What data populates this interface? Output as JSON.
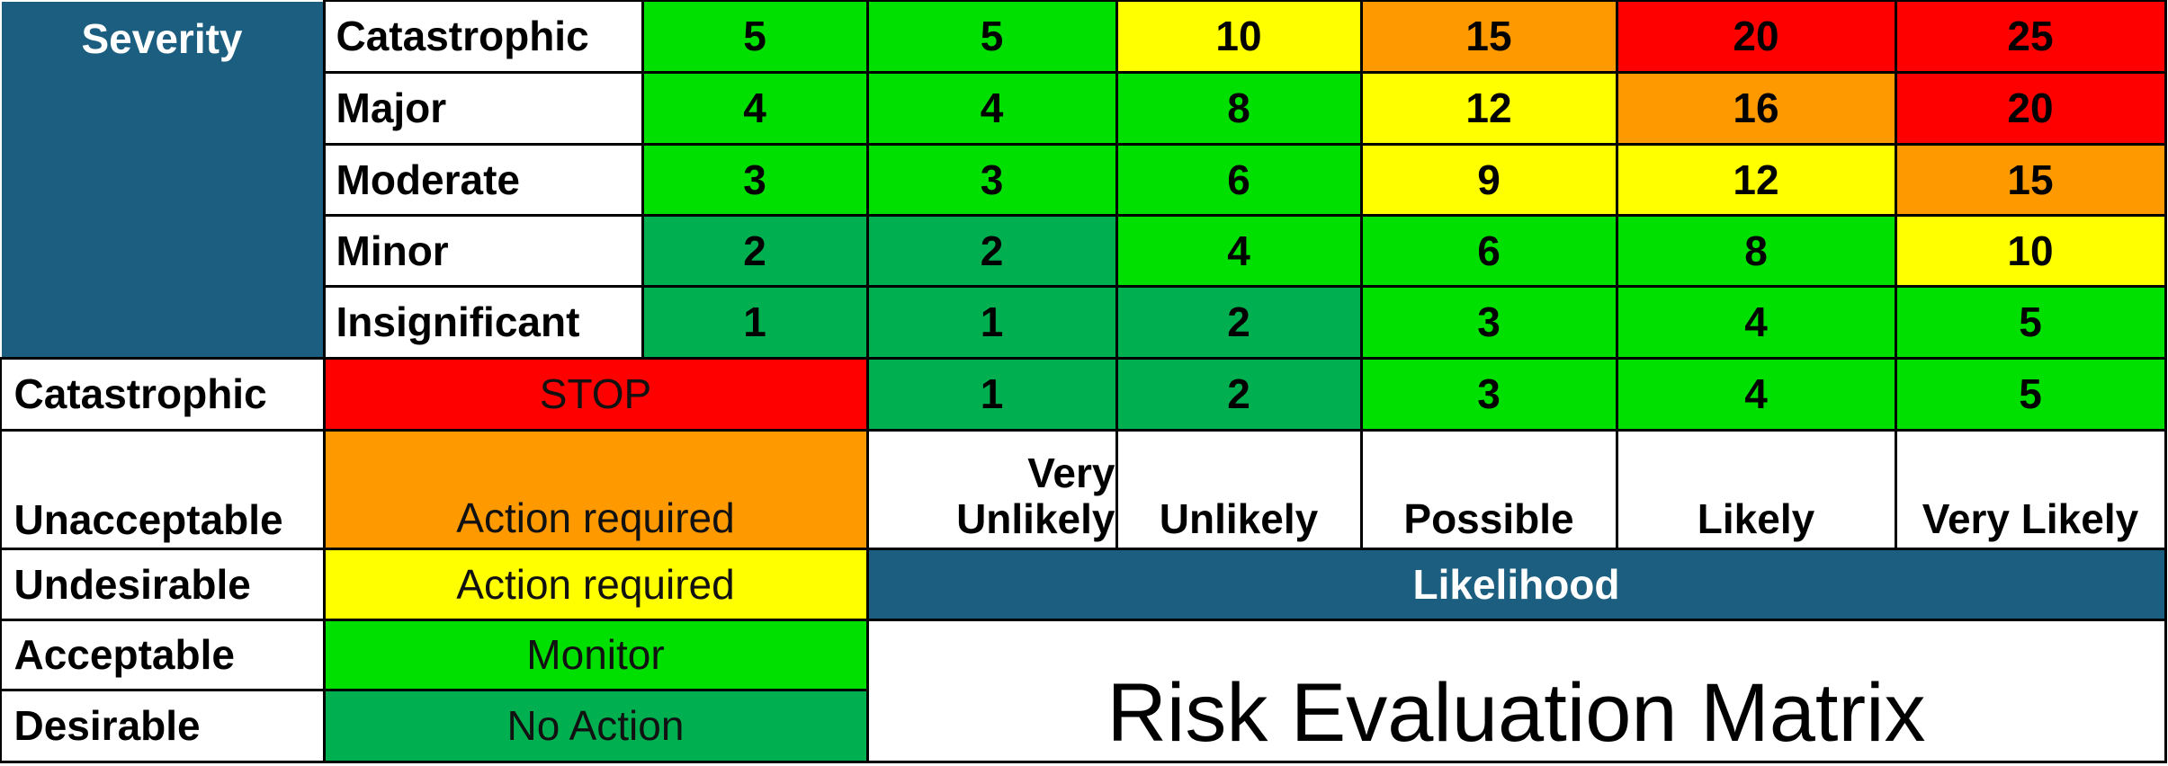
{
  "severity_header": "Severity",
  "likelihood_header": "Likelihood",
  "title": "Risk Evaluation Matrix",
  "colors": {
    "red": "#ff0000",
    "orange": "#ff9900",
    "yellow": "#ffff00",
    "light_green": "#00e000",
    "dark_green": "#00b050",
    "navy": "#1b5e80"
  },
  "severity_rows": [
    {
      "label": "Catastrophic",
      "values": [
        "5",
        "5",
        "10",
        "15",
        "20",
        "25"
      ]
    },
    {
      "label": "Major",
      "values": [
        "4",
        "4",
        "8",
        "12",
        "16",
        "20"
      ]
    },
    {
      "label": "Moderate",
      "values": [
        "3",
        "3",
        "6",
        "9",
        "12",
        "15"
      ]
    },
    {
      "label": "Minor",
      "values": [
        "2",
        "2",
        "4",
        "6",
        "8",
        "10"
      ]
    },
    {
      "label": "Insignificant",
      "values": [
        "1",
        "1",
        "2",
        "3",
        "4",
        "5"
      ]
    }
  ],
  "catastrophic_row": {
    "label": "Catastrophic",
    "action": "STOP",
    "values": [
      "1",
      "2",
      "3",
      "4",
      "5"
    ]
  },
  "ratings": [
    {
      "label": "Unacceptable",
      "action": "Action required"
    },
    {
      "label": "Undesirable",
      "action": "Action required"
    },
    {
      "label": "Acceptable",
      "action": "Monitor"
    },
    {
      "label": "Desirable",
      "action": "No Action"
    }
  ],
  "likelihood": [
    {
      "line1": "Very",
      "line2": "Unlikely"
    },
    {
      "line1": "",
      "line2": "Unlikely"
    },
    {
      "line1": "",
      "line2": "Possible"
    },
    {
      "line1": "",
      "line2": "Likely"
    },
    {
      "line1": "",
      "line2": "Very Likely"
    }
  ]
}
